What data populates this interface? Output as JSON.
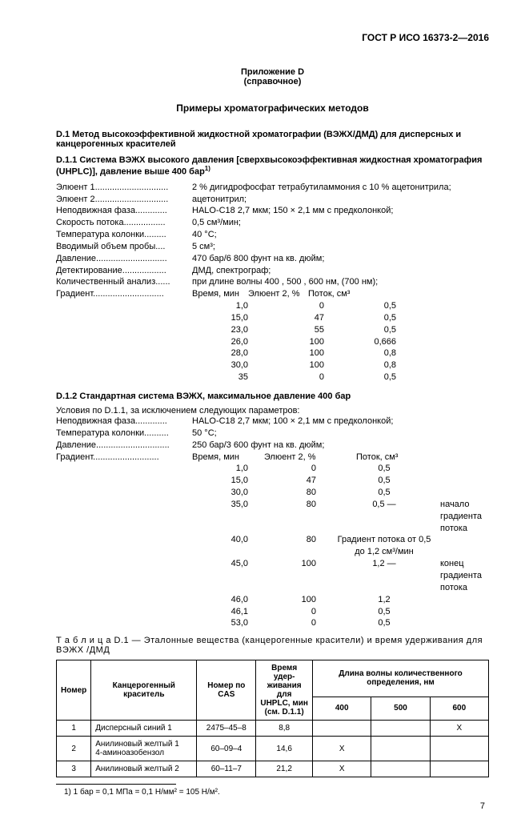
{
  "header": "ГОСТ Р ИСО 16373-2—2016",
  "appendix": {
    "line1": "Приложение D",
    "line2": "(справочное)"
  },
  "title": "Примеры хроматографических методов",
  "d1_title": "D.1 Метод высокоэффективной жидкостной хроматографии (ВЭЖХ/ДМД) для дисперсных и канцерогенных красителей",
  "d11_title_a": "D.1.1 Система ВЭЖХ высокого давления [сверхвысокоэффективная жидкостная хроматография (UHPLC)], давление выше 400 бар",
  "d11_sup": "1)",
  "params1": [
    {
      "label": "Элюент 1..............................",
      "value": "2 % дигидрофосфат тетрабутиламмония с 10 % ацетонитрила;"
    },
    {
      "label": "Элюент 2..............................",
      "value": "ацетонитрил;"
    },
    {
      "label": "Неподвижная фаза.............",
      "value": "HALO-C18 2,7 мкм; 150 × 2,1 мм с предколонкой;"
    },
    {
      "label": "Скорость потока.................",
      "value": "0,5 см³/мин;"
    },
    {
      "label": "Температура колонки.........",
      "value": "40 °C;"
    },
    {
      "label": "Вводимый объем пробы....",
      "value": "5 см³;"
    },
    {
      "label": "Давление.............................",
      "value": "470 бар/6 800 фунт на кв. дюйм;"
    },
    {
      "label": "Детектирование..................",
      "value": "ДМД, спектрограф;"
    },
    {
      "label": "Количественный анализ......",
      "value": "при длине волны 400 , 500 , 600 нм, (700 нм);"
    }
  ],
  "grad1_label": "Градиент.............................",
  "grad1_headers": {
    "time": "Время, мин",
    "pct": "Элюент 2, %",
    "flow": "Поток, см³"
  },
  "grad1_rows": [
    {
      "t": "1,0",
      "p": "0",
      "f": "0,5"
    },
    {
      "t": "15,0",
      "p": "47",
      "f": "0,5"
    },
    {
      "t": "23,0",
      "p": "55",
      "f": "0,5"
    },
    {
      "t": "26,0",
      "p": "100",
      "f": "0,666"
    },
    {
      "t": "28,0",
      "p": "100",
      "f": "0,8"
    },
    {
      "t": "30,0",
      "p": "100",
      "f": "0,8"
    },
    {
      "t": "35",
      "p": "0",
      "f": "0,5"
    }
  ],
  "d12_title": "D.1.2 Стандартная система ВЭЖХ, максимальное давление 400 бар",
  "d12_cond": "Условия по D.1.1, за исключением следующих параметров:",
  "params2": [
    {
      "label": "Неподвижная фаза.............",
      "value": "HALO-C18 2,7 мкм; 100 × 2,1 мм с предколонкой;"
    },
    {
      "label": "Температура колонки..........",
      "value": "50 °C;"
    },
    {
      "label": "Давление..............................",
      "value": "250 бар/3 600 фунт на кв. дюйм;"
    }
  ],
  "grad2_label": "Градиент...........................",
  "grad2_headers": {
    "time": "Время, мин",
    "pct": "Элюент 2, %",
    "flow": "Поток, см³"
  },
  "grad2_rows": [
    {
      "t": "1,0",
      "p": "0",
      "f": "0,5",
      "note": ""
    },
    {
      "t": "15,0",
      "p": "47",
      "f": "0,5",
      "note": ""
    },
    {
      "t": "30,0",
      "p": "80",
      "f": "0,5",
      "note": ""
    },
    {
      "t": "35,0",
      "p": "80",
      "f": "0,5 —",
      "note": "начало градиента потока"
    },
    {
      "t": "40,0",
      "p": "80",
      "f": "Градиент потока от 0,5 до 1,2 см³/мин",
      "note": ""
    },
    {
      "t": "45,0",
      "p": "100",
      "f": "1,2 —",
      "note": "конец градиента потока"
    },
    {
      "t": "46,0",
      "p": "100",
      "f": "1,2",
      "note": ""
    },
    {
      "t": "46,1",
      "p": "0",
      "f": "0,5",
      "note": ""
    },
    {
      "t": "53,0",
      "p": "0",
      "f": "0,5",
      "note": ""
    }
  ],
  "table_caption": "Т а б л и ц а  D.1 — Эталонные вещества (канцерогенные красители) и время удерживания для ВЭЖХ /ДМД",
  "table_headers": {
    "num": "Номер",
    "dye": "Канцерогенный краситель",
    "cas": "Номер по CAS",
    "ret": "Время удер-\nживания для\nUHPLC, мин\n(см. D.1.1)",
    "wave": "Длина волны количественного определения, нм",
    "w400": "400",
    "w500": "500",
    "w600": "600"
  },
  "table_rows": [
    {
      "n": "1",
      "dye": "Дисперсный синий 1",
      "cas": "2475–45–8",
      "ret": "8,8",
      "w400": "",
      "w500": "",
      "w600": "X"
    },
    {
      "n": "2",
      "dye": "Анилиновый желтый 1\n4-аминоазобензол",
      "cas": "60–09–4",
      "ret": "14,6",
      "w400": "X",
      "w500": "",
      "w600": ""
    },
    {
      "n": "3",
      "dye": "Анилиновый желтый 2",
      "cas": "60–11–7",
      "ret": "21,2",
      "w400": "X",
      "w500": "",
      "w600": ""
    }
  ],
  "footnote": "1) 1 бар = 0,1 МПа = 0,1 Н/мм² = 105 Н/м².",
  "page_num": "7"
}
